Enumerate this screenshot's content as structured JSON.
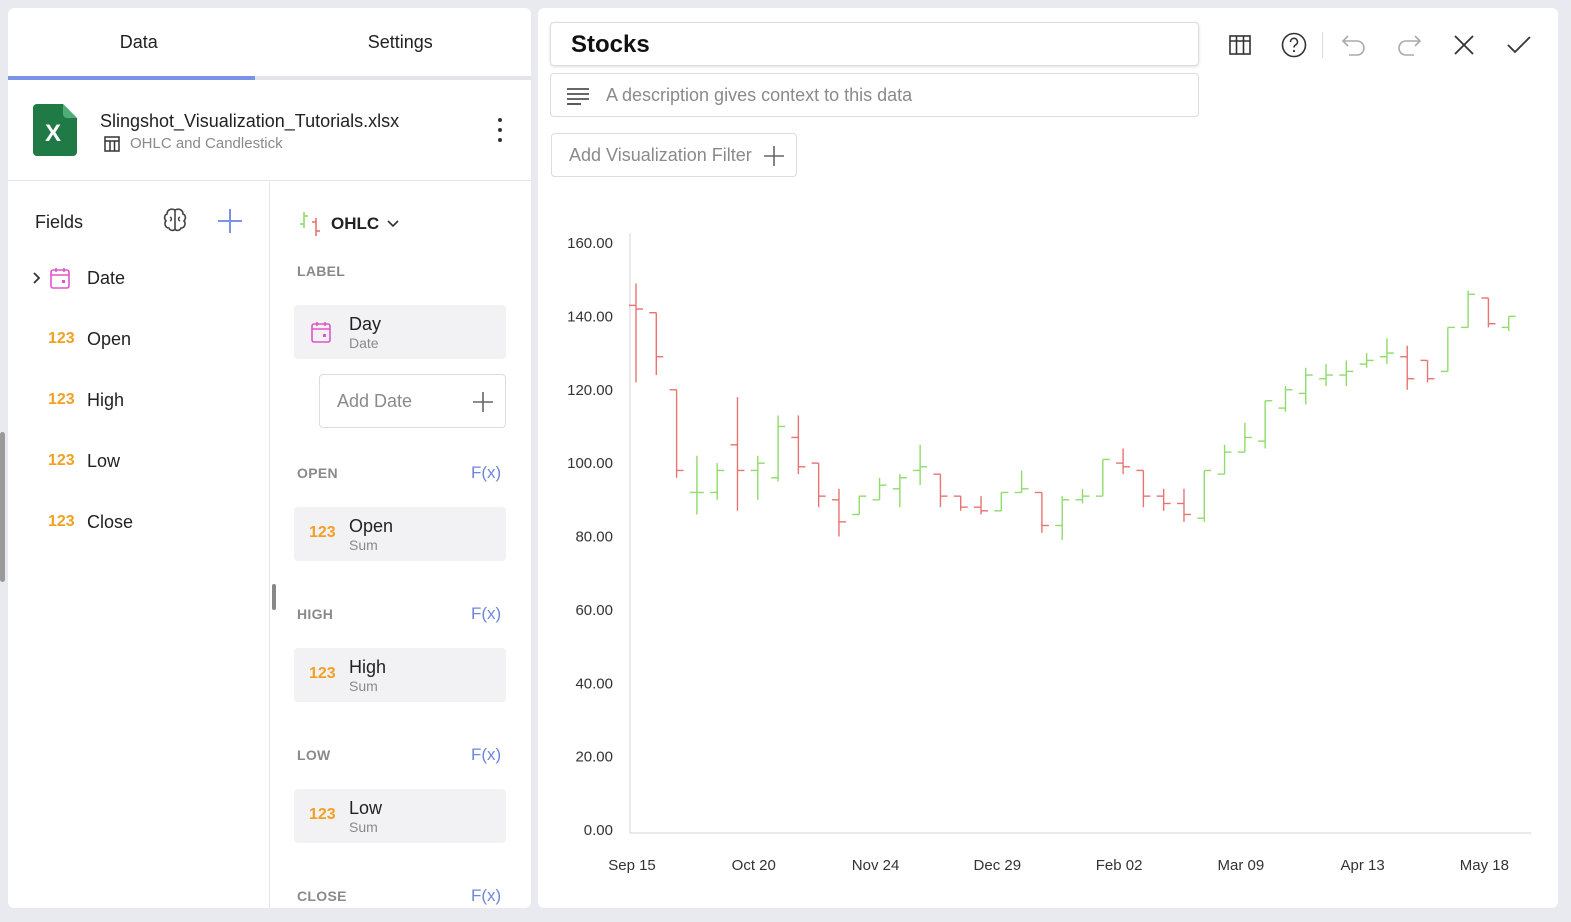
{
  "tabs": [
    {
      "label": "Data",
      "active": true
    },
    {
      "label": "Settings",
      "active": false
    }
  ],
  "source": {
    "file_name": "Slingshot_Visualization_Tutorials.xlsx",
    "sheet_name": "OHLC and Candlestick",
    "icon": "excel-icon"
  },
  "fields": {
    "header": "Fields",
    "items": [
      {
        "type": "date",
        "label": "Date"
      },
      {
        "type": "number",
        "type_label": "123",
        "label": "Open"
      },
      {
        "type": "number",
        "type_label": "123",
        "label": "High"
      },
      {
        "type": "number",
        "type_label": "123",
        "label": "Low"
      },
      {
        "type": "number",
        "type_label": "123",
        "label": "Close"
      }
    ]
  },
  "mapping": {
    "viz_type": "OHLC",
    "label_section": "LABEL",
    "label_pill": {
      "name": "Day",
      "sub": "Date"
    },
    "add_date": "Add Date",
    "fx_label": "F(x)",
    "sections": [
      {
        "title": "OPEN",
        "pill_name": "Open",
        "pill_sub": "Sum",
        "type_label": "123"
      },
      {
        "title": "HIGH",
        "pill_name": "High",
        "pill_sub": "Sum",
        "type_label": "123"
      },
      {
        "title": "LOW",
        "pill_name": "Low",
        "pill_sub": "Sum",
        "type_label": "123"
      },
      {
        "title": "CLOSE"
      }
    ]
  },
  "editor": {
    "title": "Stocks",
    "description_placeholder": "A description gives context to this data",
    "filter_label": "Add Visualization Filter",
    "toolbar": [
      "table-view-icon",
      "help-icon",
      "undo-icon",
      "redo-icon",
      "close-icon",
      "check-icon"
    ]
  },
  "colors": {
    "accent": "#7a93e6",
    "up": "#8fdc6a",
    "down": "#e87373",
    "number_icon": "#f2a024",
    "date_icon": "#e055c8",
    "excel": "#1f7a45"
  },
  "chart_data": {
    "type": "ohlc",
    "ylim": [
      0,
      160
    ],
    "yticks": [
      "0.00",
      "20.00",
      "40.00",
      "60.00",
      "80.00",
      "100.00",
      "120.00",
      "140.00",
      "160.00"
    ],
    "xtick_labels": [
      "Sep 15",
      "Oct 20",
      "Nov 24",
      "Dec 29",
      "Feb 02",
      "Mar 09",
      "Apr 13",
      "May 18"
    ],
    "bars": [
      {
        "o": 143,
        "h": 149,
        "l": 122,
        "c": 142
      },
      {
        "o": 141,
        "h": 141,
        "l": 124,
        "c": 129
      },
      {
        "o": 120,
        "h": 120,
        "l": 96,
        "c": 98
      },
      {
        "o": 92,
        "h": 102,
        "l": 86,
        "c": 92
      },
      {
        "o": 92,
        "h": 100,
        "l": 90,
        "c": 98
      },
      {
        "o": 105,
        "h": 118,
        "l": 87,
        "c": 98
      },
      {
        "o": 98,
        "h": 102,
        "l": 90,
        "c": 100
      },
      {
        "o": 96,
        "h": 113,
        "l": 95,
        "c": 110
      },
      {
        "o": 107,
        "h": 113,
        "l": 97,
        "c": 99
      },
      {
        "o": 100,
        "h": 100,
        "l": 88,
        "c": 91
      },
      {
        "o": 90,
        "h": 93,
        "l": 80,
        "c": 84
      },
      {
        "o": 86,
        "h": 91,
        "l": 86,
        "c": 91
      },
      {
        "o": 90,
        "h": 96,
        "l": 90,
        "c": 94
      },
      {
        "o": 93,
        "h": 97,
        "l": 88,
        "c": 96
      },
      {
        "o": 98,
        "h": 105,
        "l": 94,
        "c": 99
      },
      {
        "o": 97,
        "h": 97,
        "l": 88,
        "c": 91
      },
      {
        "o": 91,
        "h": 91,
        "l": 87,
        "c": 88
      },
      {
        "o": 88,
        "h": 91,
        "l": 86,
        "c": 87
      },
      {
        "o": 87,
        "h": 92,
        "l": 87,
        "c": 92
      },
      {
        "o": 92,
        "h": 98,
        "l": 92,
        "c": 93
      },
      {
        "o": 92,
        "h": 92,
        "l": 81,
        "c": 83
      },
      {
        "o": 83,
        "h": 91,
        "l": 79,
        "c": 90
      },
      {
        "o": 90,
        "h": 93,
        "l": 89,
        "c": 91
      },
      {
        "o": 91,
        "h": 101,
        "l": 91,
        "c": 101
      },
      {
        "o": 100,
        "h": 104,
        "l": 97,
        "c": 99
      },
      {
        "o": 98,
        "h": 98,
        "l": 88,
        "c": 91
      },
      {
        "o": 91,
        "h": 93,
        "l": 87,
        "c": 89
      },
      {
        "o": 89,
        "h": 93,
        "l": 84,
        "c": 86
      },
      {
        "o": 85,
        "h": 98,
        "l": 84,
        "c": 98
      },
      {
        "o": 97,
        "h": 105,
        "l": 97,
        "c": 103
      },
      {
        "o": 103,
        "h": 111,
        "l": 103,
        "c": 107
      },
      {
        "o": 106,
        "h": 117,
        "l": 104,
        "c": 117
      },
      {
        "o": 115,
        "h": 121,
        "l": 114,
        "c": 120
      },
      {
        "o": 119,
        "h": 126,
        "l": 116,
        "c": 124
      },
      {
        "o": 123,
        "h": 127,
        "l": 121,
        "c": 124
      },
      {
        "o": 124,
        "h": 128,
        "l": 121,
        "c": 125
      },
      {
        "o": 127,
        "h": 130,
        "l": 126,
        "c": 128
      },
      {
        "o": 129,
        "h": 134,
        "l": 127,
        "c": 130
      },
      {
        "o": 129,
        "h": 132,
        "l": 120,
        "c": 123
      },
      {
        "o": 128,
        "h": 128,
        "l": 122,
        "c": 123
      },
      {
        "o": 125,
        "h": 137,
        "l": 125,
        "c": 137
      },
      {
        "o": 137,
        "h": 147,
        "l": 137,
        "c": 146
      },
      {
        "o": 145,
        "h": 145,
        "l": 137,
        "c": 138
      },
      {
        "o": 137,
        "h": 140,
        "l": 136,
        "c": 140
      }
    ]
  }
}
